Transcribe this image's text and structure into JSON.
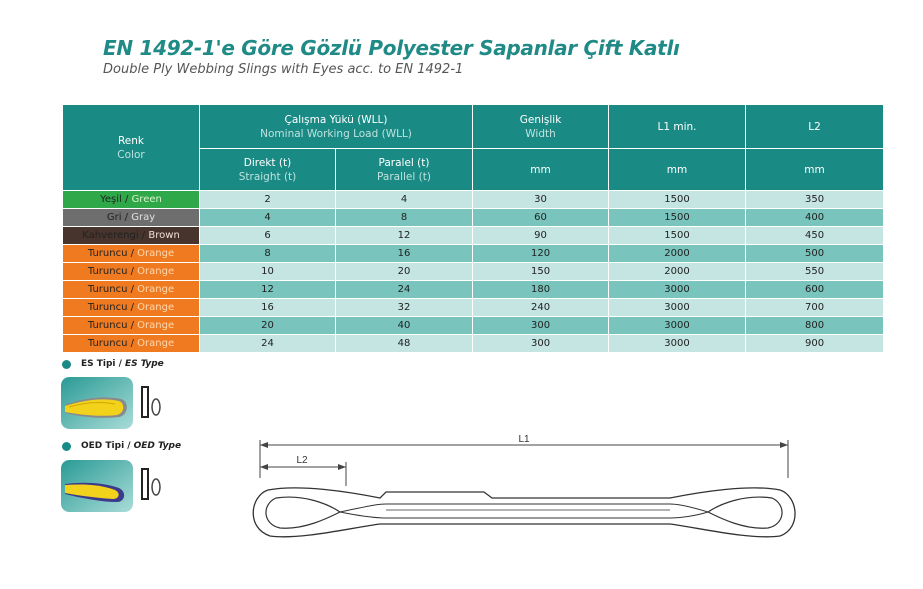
{
  "title": "EN 1492-1'e Göre Gözlü Polyester Sapanlar Çift Katlı",
  "subtitle": "Double Ply Webbing Slings with Eyes acc. to EN 1492-1",
  "table": {
    "headers": {
      "renk_tr": "Renk",
      "renk_en": "Color",
      "wll_tr": "Çalışma Yükü (WLL)",
      "wll_en": "Nominal Working Load (WLL)",
      "width_tr": "Genişlik",
      "width_en": "Width",
      "l1": "L1 min.",
      "l2": "L2",
      "direct_tr": "Direkt (t)",
      "direct_en": "Straight (t)",
      "parallel_tr": "Paralel (t)",
      "parallel_en": "Parallel (t)",
      "mm": "mm"
    },
    "rows": [
      {
        "color_tr": "Yeşil",
        "color_en": "Green",
        "bg": "#2fa84a",
        "en_color": "#d9f2c9",
        "direct": "2",
        "parallel": "4",
        "width": "30",
        "l1": "1500",
        "l2": "350"
      },
      {
        "color_tr": "Gri",
        "color_en": "Gray",
        "bg": "#6e6e6e",
        "en_color": "#e0e0e0",
        "direct": "4",
        "parallel": "8",
        "width": "60",
        "l1": "1500",
        "l2": "400"
      },
      {
        "color_tr": "Kahverengi",
        "color_en": "Brown",
        "bg": "#47342c",
        "en_color": "#f0e0d6",
        "direct": "6",
        "parallel": "12",
        "width": "90",
        "l1": "1500",
        "l2": "450"
      },
      {
        "color_tr": "Turuncu",
        "color_en": "Orange",
        "bg": "#f07a20",
        "en_color": "#ffd8b0",
        "direct": "8",
        "parallel": "16",
        "width": "120",
        "l1": "2000",
        "l2": "500"
      },
      {
        "color_tr": "Turuncu",
        "color_en": "Orange",
        "bg": "#f07a20",
        "en_color": "#ffd8b0",
        "direct": "10",
        "parallel": "20",
        "width": "150",
        "l1": "2000",
        "l2": "550"
      },
      {
        "color_tr": "Turuncu",
        "color_en": "Orange",
        "bg": "#f07a20",
        "en_color": "#ffd8b0",
        "direct": "12",
        "parallel": "24",
        "width": "180",
        "l1": "3000",
        "l2": "600"
      },
      {
        "color_tr": "Turuncu",
        "color_en": "Orange",
        "bg": "#f07a20",
        "en_color": "#ffd8b0",
        "direct": "16",
        "parallel": "32",
        "width": "240",
        "l1": "3000",
        "l2": "700"
      },
      {
        "color_tr": "Turuncu",
        "color_en": "Orange",
        "bg": "#f07a20",
        "en_color": "#ffd8b0",
        "direct": "20",
        "parallel": "40",
        "width": "300",
        "l1": "3000",
        "l2": "800"
      },
      {
        "color_tr": "Turuncu",
        "color_en": "Orange",
        "bg": "#f07a20",
        "en_color": "#ffd8b0",
        "direct": "24",
        "parallel": "48",
        "width": "300",
        "l1": "3000",
        "l2": "900"
      }
    ]
  },
  "types": [
    {
      "tr": "ES Tipi",
      "sep": "/",
      "en": "ES Type",
      "icon": "es-sling-icon"
    },
    {
      "tr": "OED Tipi",
      "sep": "/",
      "en": "OED Type",
      "icon": "oed-sling-icon"
    }
  ],
  "diagram": {
    "l1_label": "L1",
    "l2_label": "L2"
  },
  "colors": {
    "accent": "#1a8a85",
    "row_light": "#c4e5e2",
    "row_dark": "#79c4bd"
  }
}
